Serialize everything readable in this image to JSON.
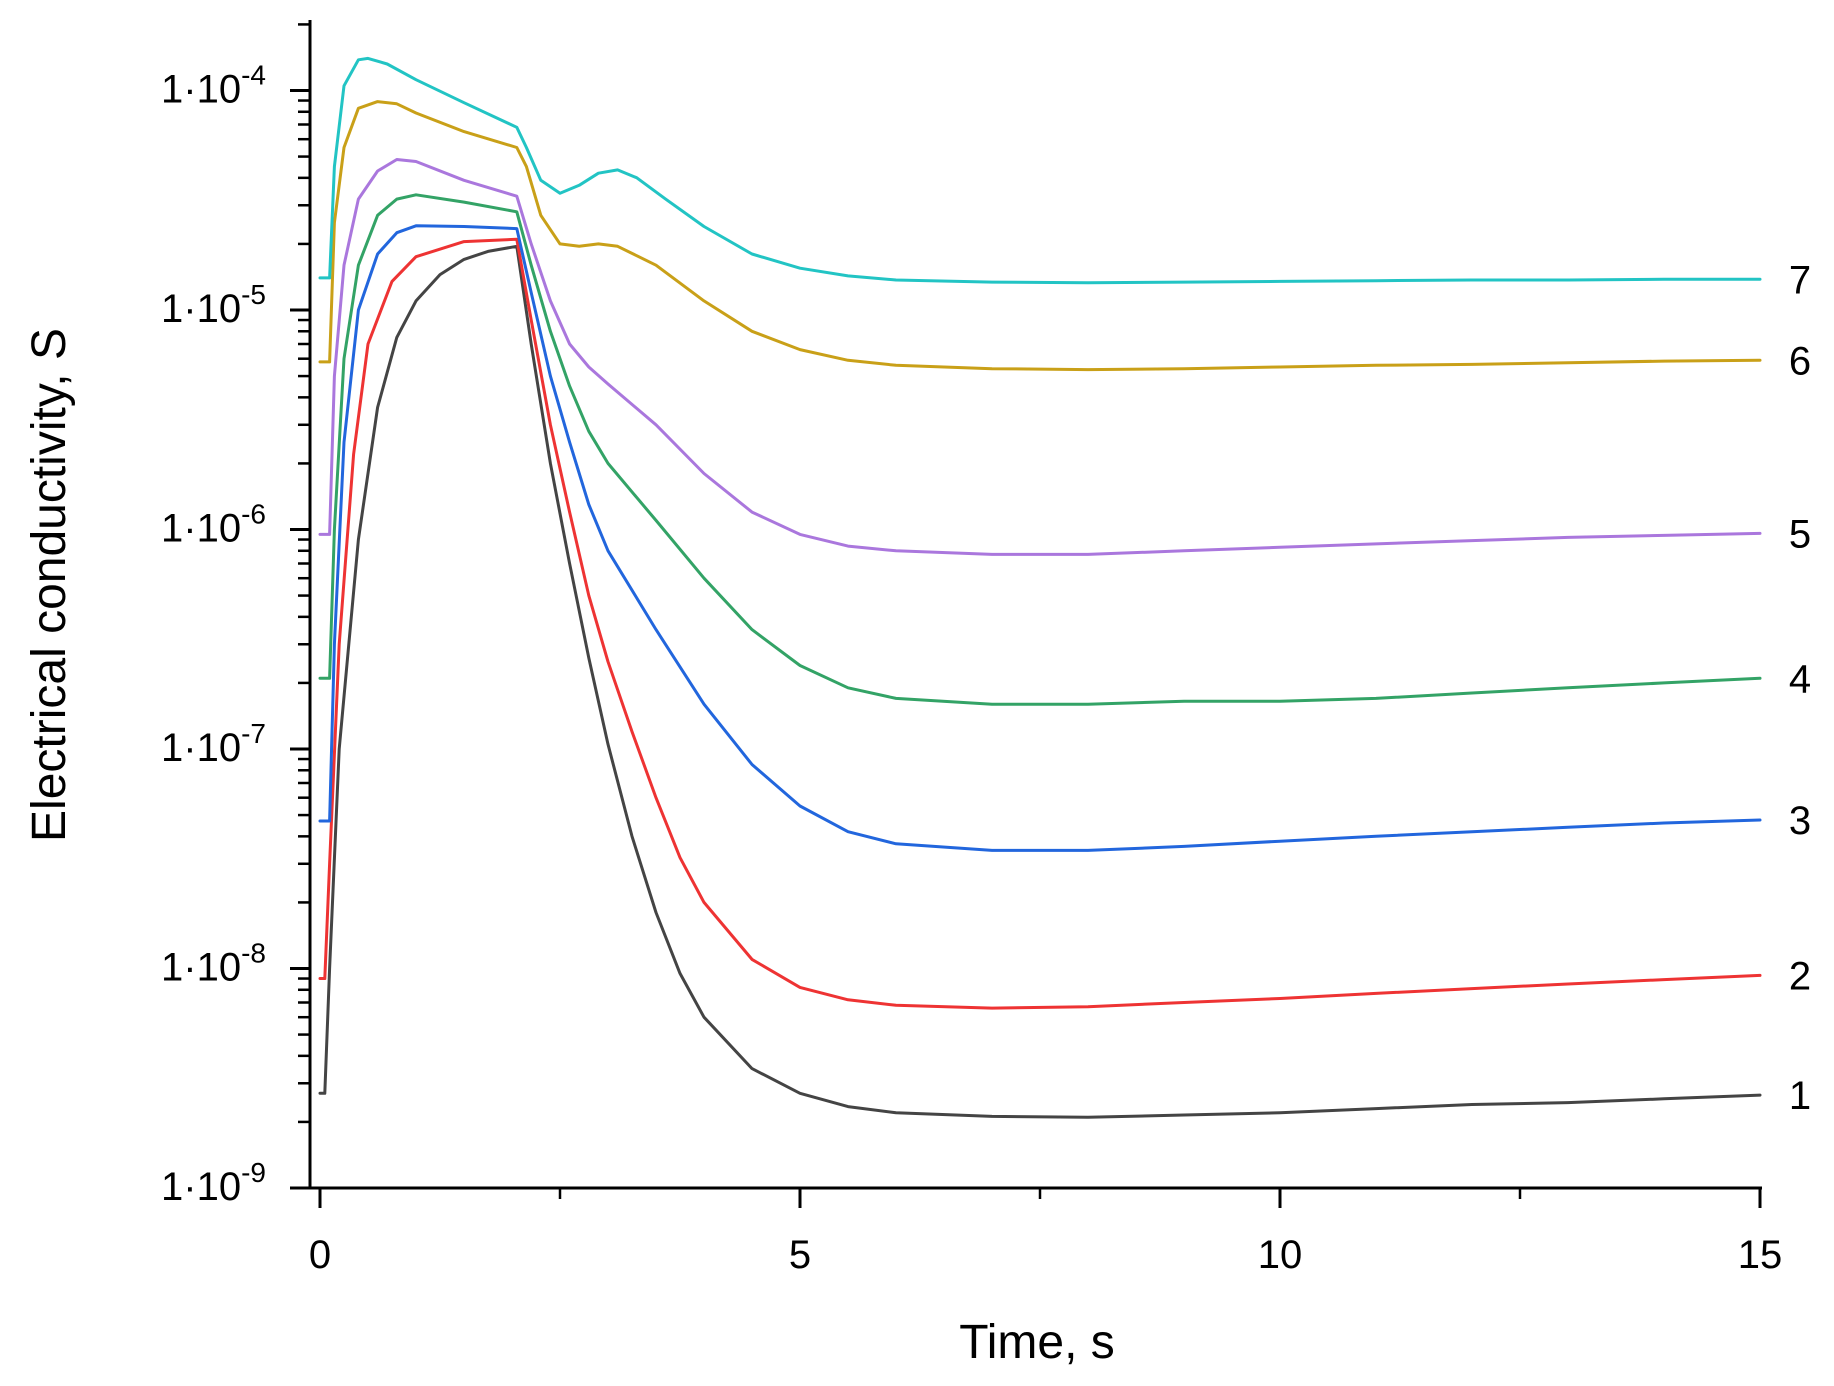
{
  "chart_data": {
    "type": "line",
    "title": "",
    "xlabel": "Time, s",
    "ylabel": "Electrical conductivity, S",
    "xlim": [
      0,
      15
    ],
    "ylim": [
      1e-09,
      0.00025
    ],
    "yscale": "log",
    "grid": false,
    "x_ticks": [
      {
        "value": 0,
        "label": "0"
      },
      {
        "value": 5,
        "label": "5"
      },
      {
        "value": 10,
        "label": "10"
      },
      {
        "value": 15,
        "label": "15"
      }
    ],
    "y_ticks": [
      {
        "value": 1e-09,
        "mantissa": "1·10",
        "exponent": "-9"
      },
      {
        "value": 1e-08,
        "mantissa": "1·10",
        "exponent": "-8"
      },
      {
        "value": 1e-07,
        "mantissa": "1·10",
        "exponent": "-7"
      },
      {
        "value": 1e-06,
        "mantissa": "1·10",
        "exponent": "-6"
      },
      {
        "value": 1e-05,
        "mantissa": "1·10",
        "exponent": "-5"
      },
      {
        "value": 0.0001,
        "mantissa": "1·10",
        "exponent": "-4"
      }
    ],
    "series": [
      {
        "name": "1",
        "color": "#444444",
        "points": [
          [
            0.0,
            2.7e-09
          ],
          [
            0.05,
            2.7e-09
          ],
          [
            0.1,
            1e-08
          ],
          [
            0.2,
            1e-07
          ],
          [
            0.4,
            9e-07
          ],
          [
            0.6,
            3.6e-06
          ],
          [
            0.8,
            7.5e-06
          ],
          [
            1.0,
            1.1e-05
          ],
          [
            1.25,
            1.45e-05
          ],
          [
            1.5,
            1.7e-05
          ],
          [
            1.75,
            1.85e-05
          ],
          [
            2.05,
            1.95e-05
          ],
          [
            2.2,
            7e-06
          ],
          [
            2.4,
            2e-06
          ],
          [
            2.6,
            7e-07
          ],
          [
            2.8,
            2.6e-07
          ],
          [
            3.0,
            1.05e-07
          ],
          [
            3.25,
            4e-08
          ],
          [
            3.5,
            1.8e-08
          ],
          [
            3.75,
            9.5e-09
          ],
          [
            4.0,
            6e-09
          ],
          [
            4.5,
            3.5e-09
          ],
          [
            5.0,
            2.7e-09
          ],
          [
            5.5,
            2.35e-09
          ],
          [
            6.0,
            2.2e-09
          ],
          [
            7.0,
            2.12e-09
          ],
          [
            8.0,
            2.1e-09
          ],
          [
            9.0,
            2.15e-09
          ],
          [
            10.0,
            2.2e-09
          ],
          [
            11.0,
            2.3e-09
          ],
          [
            12.0,
            2.4e-09
          ],
          [
            13.0,
            2.45e-09
          ],
          [
            14.0,
            2.55e-09
          ],
          [
            15.0,
            2.65e-09
          ]
        ]
      },
      {
        "name": "2",
        "color": "#ee3333",
        "points": [
          [
            0.0,
            9e-09
          ],
          [
            0.05,
            9e-09
          ],
          [
            0.1,
            3e-08
          ],
          [
            0.2,
            3e-07
          ],
          [
            0.35,
            2.2e-06
          ],
          [
            0.5,
            7e-06
          ],
          [
            0.75,
            1.35e-05
          ],
          [
            1.0,
            1.75e-05
          ],
          [
            1.5,
            2.05e-05
          ],
          [
            2.05,
            2.1e-05
          ],
          [
            2.2,
            9e-06
          ],
          [
            2.4,
            3e-06
          ],
          [
            2.6,
            1.2e-06
          ],
          [
            2.8,
            5e-07
          ],
          [
            3.0,
            2.5e-07
          ],
          [
            3.25,
            1.2e-07
          ],
          [
            3.5,
            6e-08
          ],
          [
            3.75,
            3.2e-08
          ],
          [
            4.0,
            2e-08
          ],
          [
            4.5,
            1.1e-08
          ],
          [
            5.0,
            8.2e-09
          ],
          [
            5.5,
            7.2e-09
          ],
          [
            6.0,
            6.8e-09
          ],
          [
            7.0,
            6.6e-09
          ],
          [
            8.0,
            6.7e-09
          ],
          [
            9.0,
            7e-09
          ],
          [
            10.0,
            7.3e-09
          ],
          [
            11.0,
            7.7e-09
          ],
          [
            12.0,
            8.1e-09
          ],
          [
            13.0,
            8.5e-09
          ],
          [
            14.0,
            8.9e-09
          ],
          [
            15.0,
            9.3e-09
          ]
        ]
      },
      {
        "name": "3",
        "color": "#2266dd",
        "points": [
          [
            0.0,
            4.7e-08
          ],
          [
            0.1,
            4.7e-08
          ],
          [
            0.15,
            3e-07
          ],
          [
            0.25,
            2.5e-06
          ],
          [
            0.4,
            1e-05
          ],
          [
            0.6,
            1.8e-05
          ],
          [
            0.8,
            2.25e-05
          ],
          [
            1.0,
            2.42e-05
          ],
          [
            1.5,
            2.4e-05
          ],
          [
            2.05,
            2.35e-05
          ],
          [
            2.2,
            1.2e-05
          ],
          [
            2.4,
            5e-06
          ],
          [
            2.6,
            2.5e-06
          ],
          [
            2.8,
            1.3e-06
          ],
          [
            3.0,
            8e-07
          ],
          [
            3.5,
            3.5e-07
          ],
          [
            4.0,
            1.6e-07
          ],
          [
            4.5,
            8.5e-08
          ],
          [
            5.0,
            5.5e-08
          ],
          [
            5.5,
            4.2e-08
          ],
          [
            6.0,
            3.7e-08
          ],
          [
            7.0,
            3.45e-08
          ],
          [
            8.0,
            3.45e-08
          ],
          [
            9.0,
            3.6e-08
          ],
          [
            10.0,
            3.8e-08
          ],
          [
            11.0,
            4e-08
          ],
          [
            12.0,
            4.2e-08
          ],
          [
            13.0,
            4.4e-08
          ],
          [
            14.0,
            4.6e-08
          ],
          [
            15.0,
            4.75e-08
          ]
        ]
      },
      {
        "name": "4",
        "color": "#33a366",
        "points": [
          [
            0.0,
            2.1e-07
          ],
          [
            0.1,
            2.1e-07
          ],
          [
            0.15,
            1e-06
          ],
          [
            0.25,
            6e-06
          ],
          [
            0.4,
            1.6e-05
          ],
          [
            0.6,
            2.7e-05
          ],
          [
            0.8,
            3.2e-05
          ],
          [
            1.0,
            3.35e-05
          ],
          [
            1.5,
            3.1e-05
          ],
          [
            2.05,
            2.8e-05
          ],
          [
            2.2,
            1.6e-05
          ],
          [
            2.4,
            8e-06
          ],
          [
            2.6,
            4.5e-06
          ],
          [
            2.8,
            2.8e-06
          ],
          [
            3.0,
            2e-06
          ],
          [
            3.5,
            1.1e-06
          ],
          [
            4.0,
            6e-07
          ],
          [
            4.5,
            3.5e-07
          ],
          [
            5.0,
            2.4e-07
          ],
          [
            5.5,
            1.9e-07
          ],
          [
            6.0,
            1.7e-07
          ],
          [
            7.0,
            1.6e-07
          ],
          [
            8.0,
            1.6e-07
          ],
          [
            9.0,
            1.65e-07
          ],
          [
            10.0,
            1.65e-07
          ],
          [
            11.0,
            1.7e-07
          ],
          [
            12.0,
            1.8e-07
          ],
          [
            13.0,
            1.9e-07
          ],
          [
            14.0,
            2e-07
          ],
          [
            15.0,
            2.1e-07
          ]
        ]
      },
      {
        "name": "5",
        "color": "#aa77dd",
        "points": [
          [
            0.0,
            9.5e-07
          ],
          [
            0.1,
            9.5e-07
          ],
          [
            0.15,
            5e-06
          ],
          [
            0.25,
            1.6e-05
          ],
          [
            0.4,
            3.2e-05
          ],
          [
            0.6,
            4.3e-05
          ],
          [
            0.8,
            4.85e-05
          ],
          [
            1.0,
            4.75e-05
          ],
          [
            1.5,
            3.9e-05
          ],
          [
            2.05,
            3.3e-05
          ],
          [
            2.2,
            2e-05
          ],
          [
            2.4,
            1.1e-05
          ],
          [
            2.6,
            7e-06
          ],
          [
            2.8,
            5.5e-06
          ],
          [
            3.0,
            4.6e-06
          ],
          [
            3.5,
            3e-06
          ],
          [
            4.0,
            1.8e-06
          ],
          [
            4.5,
            1.2e-06
          ],
          [
            5.0,
            9.5e-07
          ],
          [
            5.5,
            8.4e-07
          ],
          [
            6.0,
            8e-07
          ],
          [
            7.0,
            7.7e-07
          ],
          [
            8.0,
            7.7e-07
          ],
          [
            9.0,
            8e-07
          ],
          [
            10.0,
            8.3e-07
          ],
          [
            11.0,
            8.6e-07
          ],
          [
            12.0,
            8.9e-07
          ],
          [
            13.0,
            9.2e-07
          ],
          [
            14.0,
            9.4e-07
          ],
          [
            15.0,
            9.6e-07
          ]
        ]
      },
      {
        "name": "6",
        "color": "#c9a018",
        "points": [
          [
            0.0,
            5.8e-06
          ],
          [
            0.1,
            5.8e-06
          ],
          [
            0.15,
            2.5e-05
          ],
          [
            0.25,
            5.5e-05
          ],
          [
            0.4,
            8.3e-05
          ],
          [
            0.6,
            8.9e-05
          ],
          [
            0.8,
            8.7e-05
          ],
          [
            1.0,
            7.9e-05
          ],
          [
            1.5,
            6.5e-05
          ],
          [
            2.05,
            5.5e-05
          ],
          [
            2.15,
            4.5e-05
          ],
          [
            2.3,
            2.7e-05
          ],
          [
            2.5,
            2e-05
          ],
          [
            2.7,
            1.95e-05
          ],
          [
            2.9,
            2e-05
          ],
          [
            3.1,
            1.95e-05
          ],
          [
            3.5,
            1.6e-05
          ],
          [
            4.0,
            1.1e-05
          ],
          [
            4.5,
            8e-06
          ],
          [
            5.0,
            6.6e-06
          ],
          [
            5.5,
            5.9e-06
          ],
          [
            6.0,
            5.6e-06
          ],
          [
            7.0,
            5.4e-06
          ],
          [
            8.0,
            5.35e-06
          ],
          [
            9.0,
            5.4e-06
          ],
          [
            10.0,
            5.5e-06
          ],
          [
            11.0,
            5.6e-06
          ],
          [
            12.0,
            5.65e-06
          ],
          [
            13.0,
            5.75e-06
          ],
          [
            14.0,
            5.85e-06
          ],
          [
            15.0,
            5.9e-06
          ]
        ]
      },
      {
        "name": "7",
        "color": "#22c4c4",
        "points": [
          [
            0.0,
            1.4e-05
          ],
          [
            0.1,
            1.4e-05
          ],
          [
            0.15,
            4.5e-05
          ],
          [
            0.25,
            0.000105
          ],
          [
            0.4,
            0.000138
          ],
          [
            0.5,
            0.00014
          ],
          [
            0.7,
            0.000132
          ],
          [
            1.0,
            0.000112
          ],
          [
            1.5,
            8.8e-05
          ],
          [
            2.05,
            6.8e-05
          ],
          [
            2.15,
            5.5e-05
          ],
          [
            2.3,
            3.9e-05
          ],
          [
            2.5,
            3.4e-05
          ],
          [
            2.7,
            3.7e-05
          ],
          [
            2.9,
            4.2e-05
          ],
          [
            3.1,
            4.35e-05
          ],
          [
            3.3,
            4e-05
          ],
          [
            3.6,
            3.2e-05
          ],
          [
            4.0,
            2.4e-05
          ],
          [
            4.5,
            1.8e-05
          ],
          [
            5.0,
            1.55e-05
          ],
          [
            5.5,
            1.43e-05
          ],
          [
            6.0,
            1.37e-05
          ],
          [
            7.0,
            1.34e-05
          ],
          [
            8.0,
            1.33e-05
          ],
          [
            9.0,
            1.34e-05
          ],
          [
            10.0,
            1.35e-05
          ],
          [
            11.0,
            1.36e-05
          ],
          [
            12.0,
            1.37e-05
          ],
          [
            13.0,
            1.37e-05
          ],
          [
            14.0,
            1.38e-05
          ],
          [
            15.0,
            1.38e-05
          ]
        ]
      }
    ]
  }
}
